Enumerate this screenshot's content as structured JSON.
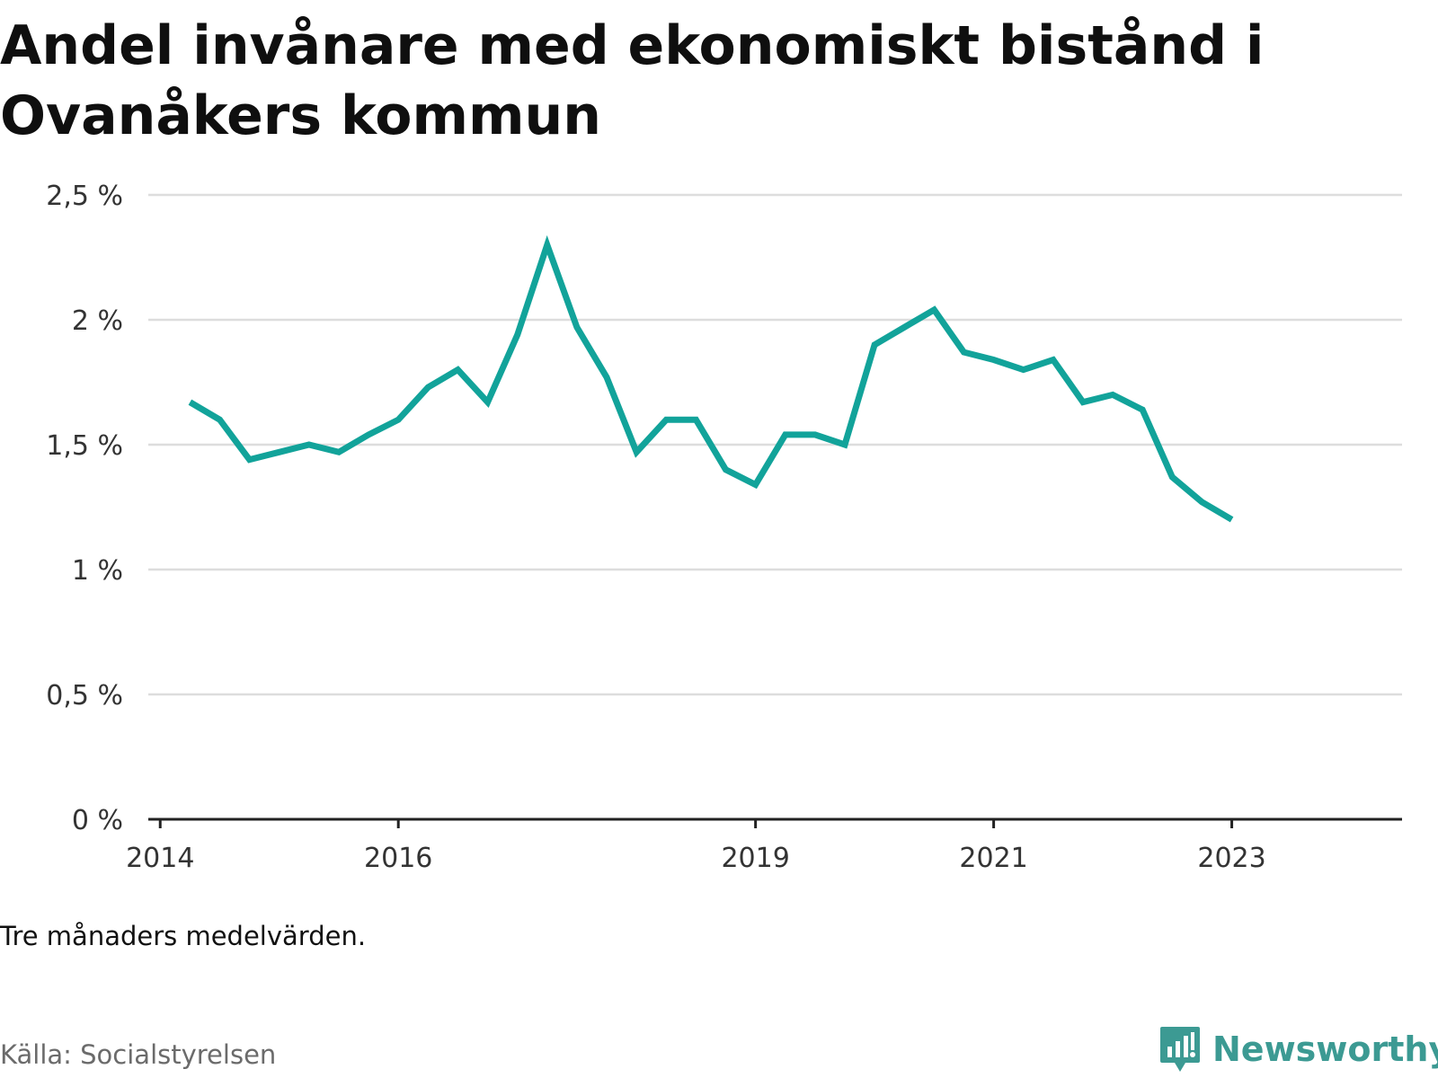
{
  "title": "Andel invånare med ekonomiskt bistånd i Ovanåkers kommun",
  "note": "Tre månaders medelvärden.",
  "source": "Källa: Socialstyrelsen",
  "brand": {
    "name": "Newsworthy",
    "icon": "newsworthy-logo-icon",
    "color": "#3c9a93"
  },
  "colors": {
    "line": "#12a39a",
    "grid": "#dddddd",
    "axis": "#222222",
    "tick_text": "#333333"
  },
  "chart_data": {
    "type": "line",
    "title": "Andel invånare med ekonomiskt bistånd i Ovanåkers kommun",
    "xlabel": "",
    "ylabel": "",
    "ylim": [
      0,
      2.5
    ],
    "y_ticks": [
      0,
      0.5,
      1,
      1.5,
      2,
      2.5
    ],
    "y_tick_labels": [
      "0 %",
      "0,5 %",
      "1 %",
      "1,5 %",
      "2 %",
      "2,5 %"
    ],
    "x_ticks": [
      2014,
      2016,
      2019,
      2021,
      2023
    ],
    "x_tick_labels": [
      "2014",
      "2016",
      "2019",
      "2021",
      "2023"
    ],
    "xlim": [
      2013.9,
      2024.43
    ],
    "grid": true,
    "series": [
      {
        "name": "",
        "x": [
          2014.25,
          2014.5,
          2014.75,
          2015.0,
          2015.25,
          2015.5,
          2015.75,
          2016.0,
          2016.25,
          2016.5,
          2016.75,
          2017.0,
          2017.25,
          2017.5,
          2017.75,
          2018.0,
          2018.25,
          2018.5,
          2018.75,
          2019.0,
          2019.25,
          2019.5,
          2019.75,
          2020.0,
          2020.25,
          2020.5,
          2020.75,
          2021.0,
          2021.25,
          2021.5,
          2021.75,
          2022.0,
          2022.25,
          2022.5,
          2022.75,
          2023.0,
          2023.25
        ],
        "values": [
          1.67,
          1.6,
          1.44,
          1.47,
          1.5,
          1.47,
          1.54,
          1.6,
          1.73,
          1.8,
          1.67,
          1.94,
          2.3,
          1.97,
          1.77,
          1.47,
          1.6,
          1.6,
          1.4,
          1.34,
          1.54,
          1.54,
          1.5,
          1.9,
          1.97,
          2.04,
          1.87,
          1.84,
          1.8,
          1.84,
          1.67,
          1.7,
          1.64,
          1.37,
          1.27,
          1.2,
          null
        ]
      }
    ]
  }
}
